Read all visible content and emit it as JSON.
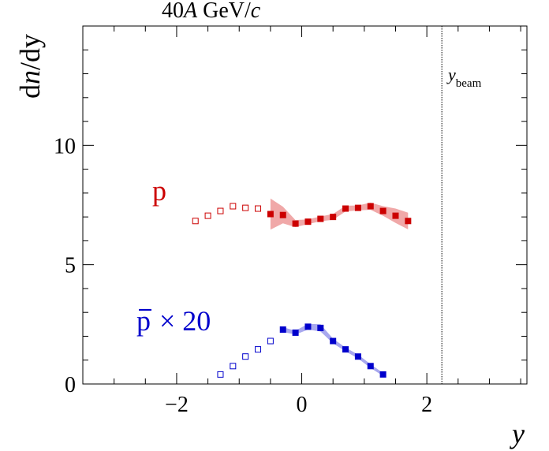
{
  "chart_data": {
    "type": "scatter",
    "title": "40A GeV/c",
    "title_parts": {
      "pre": "40",
      "italic1": "A",
      "mid": " GeV/",
      "italic2": "c"
    },
    "ylabel": {
      "pre": "d",
      "italic": "n",
      "post": "/dy"
    },
    "xlabel": "y",
    "xlim": [
      -3.5,
      3.6
    ],
    "ylim": [
      0,
      15
    ],
    "x_ticks": [
      -2,
      0,
      2
    ],
    "x_tick_labels": [
      "−2",
      "0",
      "2"
    ],
    "y_ticks": [
      0,
      5,
      10
    ],
    "y_tick_labels": [
      "0",
      "5",
      "10"
    ],
    "beam_line": {
      "x": 2.24,
      "label_main": "y",
      "label_sub": "beam",
      "color": "#000000"
    },
    "series": [
      {
        "name": "p",
        "label": "p",
        "color": "#cc0000",
        "band_color": "#f0a8a8",
        "measured": {
          "x": [
            -0.5,
            -0.3,
            -0.1,
            0.1,
            0.3,
            0.5,
            0.7,
            0.9,
            1.1,
            1.3,
            1.5,
            1.7
          ],
          "y": [
            7.12,
            7.08,
            6.72,
            6.8,
            6.92,
            7.0,
            7.35,
            7.38,
            7.45,
            7.25,
            7.05,
            6.83
          ],
          "band_halfwidth": [
            0.65,
            0.35,
            0.15,
            0.1,
            0.1,
            0.12,
            0.12,
            0.1,
            0.15,
            0.2,
            0.3,
            0.35
          ]
        },
        "reflected": {
          "x": [
            -1.7,
            -1.5,
            -1.3,
            -1.1,
            -0.9,
            -0.7
          ],
          "y": [
            6.83,
            7.05,
            7.25,
            7.45,
            7.38,
            7.35
          ]
        }
      },
      {
        "name": "pbar",
        "label_bar": "p",
        "label_rest": "× 20",
        "color": "#0000cc",
        "band_color": "#a8a8ee",
        "measured": {
          "x": [
            -0.3,
            -0.1,
            0.1,
            0.3,
            0.5,
            0.7,
            0.9,
            1.1,
            1.3
          ],
          "y": [
            2.28,
            2.15,
            2.4,
            2.35,
            1.8,
            1.45,
            1.15,
            0.75,
            0.4
          ],
          "band_halfwidth": [
            0.1,
            0.08,
            0.12,
            0.15,
            0.1,
            0.08,
            0.08,
            0.08,
            0.06
          ]
        },
        "reflected": {
          "x": [
            -1.3,
            -1.1,
            -0.9,
            -0.7,
            -0.5
          ],
          "y": [
            0.4,
            0.75,
            1.15,
            1.45,
            1.8
          ]
        }
      }
    ]
  }
}
